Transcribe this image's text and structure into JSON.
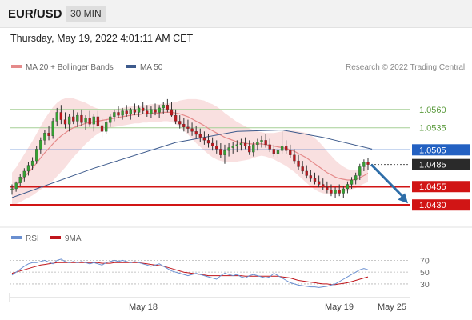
{
  "header": {
    "symbol": "EUR/USD",
    "timeframe": "30 MIN"
  },
  "timestamp": "Thursday, May 19, 2022 4:01:11 AM CET",
  "legend": {
    "ma20_label": "MA 20 + Bollinger Bands",
    "ma50_label": "MA 50",
    "copyright": "Research © 2022 Trading Central"
  },
  "rsi_legend": {
    "rsi_label": "RSI",
    "ma_label": "9MA"
  },
  "colors": {
    "ma20": "#e58a8a",
    "ma50": "#3d5a8c",
    "band_fill": "#f6d0d0",
    "resistance": "#a6cf95",
    "support": "#d11515",
    "pivot": "#2361c2",
    "last_price": "#2a2a2a",
    "candle_up": "#35a032",
    "candle_down": "#c0161c",
    "arrow": "#2d6da8",
    "rsi": "#6a8fd0",
    "rsi_ma": "#c0161c"
  },
  "levels": [
    {
      "label": "1.0560",
      "type": "resistance"
    },
    {
      "label": "1.0535",
      "type": "resistance"
    },
    {
      "label": "1.0505",
      "type": "pivot"
    },
    {
      "label": "1.0485",
      "type": "last"
    },
    {
      "label": "1.0455",
      "type": "support"
    },
    {
      "label": "1.0430",
      "type": "support"
    }
  ],
  "x_labels": [
    "May 18",
    "May 19",
    "May 25"
  ],
  "rsi_levels": [
    "70",
    "50",
    "30"
  ],
  "icons": {
    "forecast_arrow": "arrow-down-right-icon"
  },
  "chart_data": {
    "type": "candlestick",
    "price_range": [
      1.0415,
      1.06
    ],
    "rsi_range": [
      15,
      80
    ],
    "candles": [
      [
        1.045,
        1.0458,
        1.0444,
        1.0452
      ],
      [
        1.0452,
        1.0462,
        1.0448,
        1.046
      ],
      [
        1.046,
        1.0472,
        1.0456,
        1.0468
      ],
      [
        1.0468,
        1.048,
        1.0462,
        1.0476
      ],
      [
        1.0476,
        1.0488,
        1.047,
        1.0484
      ],
      [
        1.0484,
        1.0495,
        1.0478,
        1.049
      ],
      [
        1.049,
        1.051,
        1.0486,
        1.0506
      ],
      [
        1.0506,
        1.0522,
        1.05,
        1.0518
      ],
      [
        1.0518,
        1.0532,
        1.0512,
        1.0528
      ],
      [
        1.0528,
        1.0538,
        1.0518,
        1.0524
      ],
      [
        1.0524,
        1.0548,
        1.052,
        1.0544
      ],
      [
        1.0544,
        1.0562,
        1.0538,
        1.0556
      ],
      [
        1.0556,
        1.0566,
        1.054,
        1.0546
      ],
      [
        1.0546,
        1.0556,
        1.0534,
        1.054
      ],
      [
        1.054,
        1.0554,
        1.053,
        1.055
      ],
      [
        1.055,
        1.056,
        1.054,
        1.0544
      ],
      [
        1.0544,
        1.0556,
        1.0536,
        1.0552
      ],
      [
        1.0552,
        1.056,
        1.0538,
        1.0542
      ],
      [
        1.0542,
        1.0552,
        1.0532,
        1.0548
      ],
      [
        1.0548,
        1.0558,
        1.0536,
        1.054
      ],
      [
        1.054,
        1.0554,
        1.053,
        1.055
      ],
      [
        1.055,
        1.0558,
        1.0536,
        1.0538
      ],
      [
        1.0538,
        1.0548,
        1.0522,
        1.053
      ],
      [
        1.053,
        1.0546,
        1.0526,
        1.0542
      ],
      [
        1.0542,
        1.0554,
        1.0536,
        1.055
      ],
      [
        1.055,
        1.056,
        1.0544,
        1.0556
      ],
      [
        1.0556,
        1.0564,
        1.0548,
        1.0552
      ],
      [
        1.0552,
        1.0562,
        1.0546,
        1.0558
      ],
      [
        1.0558,
        1.0566,
        1.055,
        1.0554
      ],
      [
        1.0554,
        1.0562,
        1.0546,
        1.056
      ],
      [
        1.056,
        1.0568,
        1.0552,
        1.0556
      ],
      [
        1.0556,
        1.0566,
        1.055,
        1.0562
      ],
      [
        1.0562,
        1.057,
        1.0554,
        1.0558
      ],
      [
        1.0558,
        1.0566,
        1.055,
        1.0554
      ],
      [
        1.0554,
        1.0564,
        1.0548,
        1.056
      ],
      [
        1.056,
        1.0568,
        1.0552,
        1.0556
      ],
      [
        1.0556,
        1.0566,
        1.0548,
        1.0562
      ],
      [
        1.0562,
        1.057,
        1.0554,
        1.0566
      ],
      [
        1.0566,
        1.0574,
        1.0556,
        1.056
      ],
      [
        1.056,
        1.057,
        1.055,
        1.0552
      ],
      [
        1.0552,
        1.056,
        1.054,
        1.0544
      ],
      [
        1.0544,
        1.0552,
        1.0534,
        1.054
      ],
      [
        1.054,
        1.0548,
        1.053,
        1.0536
      ],
      [
        1.0536,
        1.0546,
        1.0528,
        1.0534
      ],
      [
        1.0534,
        1.0542,
        1.0524,
        1.053
      ],
      [
        1.053,
        1.0538,
        1.052,
        1.0526
      ],
      [
        1.0526,
        1.0534,
        1.0516,
        1.0522
      ],
      [
        1.0522,
        1.053,
        1.0512,
        1.0518
      ],
      [
        1.0518,
        1.0526,
        1.0508,
        1.0514
      ],
      [
        1.0514,
        1.0522,
        1.0504,
        1.051
      ],
      [
        1.051,
        1.0518,
        1.05,
        1.0506
      ],
      [
        1.0506,
        1.0514,
        1.0494,
        1.0498
      ],
      [
        1.0498,
        1.0512,
        1.0486,
        1.0504
      ],
      [
        1.0504,
        1.0514,
        1.0496,
        1.0508
      ],
      [
        1.0508,
        1.0516,
        1.05,
        1.051
      ],
      [
        1.051,
        1.0518,
        1.0502,
        1.0512
      ],
      [
        1.0512,
        1.052,
        1.0504,
        1.0514
      ],
      [
        1.0514,
        1.0522,
        1.0506,
        1.051
      ],
      [
        1.051,
        1.0518,
        1.0498,
        1.0502
      ],
      [
        1.0502,
        1.0516,
        1.0496,
        1.0512
      ],
      [
        1.0512,
        1.052,
        1.0504,
        1.0516
      ],
      [
        1.0516,
        1.0524,
        1.0508,
        1.0518
      ],
      [
        1.0518,
        1.0526,
        1.0508,
        1.0512
      ],
      [
        1.0512,
        1.052,
        1.0502,
        1.0506
      ],
      [
        1.0506,
        1.0512,
        1.0496,
        1.05
      ],
      [
        1.05,
        1.0508,
        1.0494,
        1.0504
      ],
      [
        1.0504,
        1.053,
        1.05,
        1.051
      ],
      [
        1.051,
        1.0518,
        1.05,
        1.0504
      ],
      [
        1.0504,
        1.0512,
        1.0494,
        1.0498
      ],
      [
        1.0498,
        1.0506,
        1.0486,
        1.049
      ],
      [
        1.049,
        1.0498,
        1.0478,
        1.0482
      ],
      [
        1.0482,
        1.049,
        1.0472,
        1.0476
      ],
      [
        1.0476,
        1.0484,
        1.0466,
        1.047
      ],
      [
        1.047,
        1.0478,
        1.0462,
        1.0466
      ],
      [
        1.0466,
        1.0474,
        1.0458,
        1.0462
      ],
      [
        1.0462,
        1.047,
        1.0454,
        1.0458
      ],
      [
        1.0458,
        1.0466,
        1.045,
        1.0454
      ],
      [
        1.0454,
        1.0462,
        1.0446,
        1.045
      ],
      [
        1.045,
        1.0458,
        1.0442,
        1.0446
      ],
      [
        1.0446,
        1.0454,
        1.044,
        1.045
      ],
      [
        1.045,
        1.0458,
        1.0442,
        1.0446
      ],
      [
        1.0446,
        1.0456,
        1.044,
        1.0452
      ],
      [
        1.0452,
        1.0462,
        1.0446,
        1.0458
      ],
      [
        1.0458,
        1.0468,
        1.0452,
        1.0464
      ],
      [
        1.0464,
        1.0474,
        1.0458,
        1.047
      ],
      [
        1.047,
        1.0486,
        1.0464,
        1.0482
      ],
      [
        1.0482,
        1.0492,
        1.0476,
        1.0488
      ],
      [
        1.0488,
        1.0494,
        1.0478,
        1.0485
      ]
    ],
    "ma20": [
      1.0452,
      1.0456,
      1.0462,
      1.0468,
      1.0474,
      1.048,
      1.0487,
      1.0494,
      1.0501,
      1.0507,
      1.0513,
      1.0519,
      1.0524,
      1.0528,
      1.0532,
      1.0535,
      1.0537,
      1.0539,
      1.0541,
      1.0542,
      1.0543,
      1.0544,
      1.0545,
      1.0546,
      1.0547,
      1.0548,
      1.0549,
      1.055,
      1.0551,
      1.0552,
      1.0553,
      1.0553,
      1.0554,
      1.0554,
      1.0555,
      1.0555,
      1.0555,
      1.0556,
      1.0556,
      1.0556,
      1.0555,
      1.0554,
      1.0552,
      1.055,
      1.0547,
      1.0544,
      1.0541,
      1.0538,
      1.0534,
      1.0531,
      1.0528,
      1.0525,
      1.0522,
      1.052,
      1.0518,
      1.0516,
      1.0515,
      1.0514,
      1.0513,
      1.0513,
      1.0513,
      1.0513,
      1.0512,
      1.0511,
      1.051,
      1.0509,
      1.0508,
      1.0507,
      1.0505,
      1.0503,
      1.05,
      1.0497,
      1.0494,
      1.049,
      1.0486,
      1.0482,
      1.0478,
      1.0474,
      1.0471,
      1.0468,
      1.0466,
      1.0465,
      1.0464,
      1.0464,
      1.0465,
      1.0467,
      1.047,
      1.0473
    ],
    "band_width": [
      0.0022,
      0.0025,
      0.0028,
      0.0031,
      0.0034,
      0.0037,
      0.004,
      0.0043,
      0.0046,
      0.0048,
      0.005,
      0.005,
      0.0049,
      0.0047,
      0.0044,
      0.004,
      0.0036,
      0.0032,
      0.0028,
      0.0024,
      0.002,
      0.0017,
      0.0015,
      0.0013,
      0.0012,
      0.0012,
      0.0012,
      0.0012,
      0.0012,
      0.0012,
      0.0012,
      0.0012,
      0.0012,
      0.0012,
      0.0012,
      0.0012,
      0.0012,
      0.0012,
      0.0012,
      0.0013,
      0.0015,
      0.0018,
      0.0021,
      0.0024,
      0.0027,
      0.003,
      0.0032,
      0.0034,
      0.0035,
      0.0036,
      0.0036,
      0.0035,
      0.0033,
      0.0031,
      0.0029,
      0.0027,
      0.0025,
      0.0023,
      0.0021,
      0.0019,
      0.0017,
      0.0016,
      0.0016,
      0.0017,
      0.0018,
      0.002,
      0.0022,
      0.0024,
      0.0026,
      0.0028,
      0.003,
      0.0032,
      0.0034,
      0.0035,
      0.0035,
      0.0034,
      0.0032,
      0.0029,
      0.0026,
      0.0023,
      0.002,
      0.0017,
      0.0015,
      0.0013,
      0.0012,
      0.0011,
      0.0011,
      0.0012
    ],
    "ma50_points": [
      [
        0,
        1.044
      ],
      [
        20,
        1.048
      ],
      [
        40,
        1.0515
      ],
      [
        55,
        1.053
      ],
      [
        66,
        1.0532
      ],
      [
        76,
        1.0522
      ],
      [
        88,
        1.0506
      ]
    ],
    "rsi": [
      45,
      50,
      55,
      60,
      64,
      66,
      66,
      68,
      70,
      67,
      64,
      70,
      72,
      68,
      66,
      68,
      66,
      68,
      66,
      64,
      66,
      64,
      62,
      66,
      68,
      70,
      68,
      70,
      68,
      66,
      68,
      66,
      64,
      62,
      60,
      62,
      64,
      60,
      56,
      52,
      50,
      48,
      46,
      44,
      46,
      48,
      46,
      44,
      42,
      40,
      38,
      44,
      48,
      46,
      44,
      46,
      42,
      40,
      44,
      46,
      44,
      42,
      40,
      42,
      48,
      44,
      40,
      36,
      32,
      30,
      28,
      27,
      26,
      25,
      25,
      24,
      25,
      26,
      28,
      30,
      34,
      38,
      42,
      46,
      50,
      54,
      56,
      54
    ],
    "rsi_ma": [
      48,
      50,
      52,
      54,
      56,
      58,
      60,
      62,
      63,
      64,
      65,
      66,
      66,
      66,
      66,
      66,
      66,
      66,
      66,
      66,
      66,
      66,
      65,
      65,
      65,
      66,
      66,
      66,
      66,
      66,
      66,
      66,
      65,
      64,
      63,
      62,
      61,
      60,
      58,
      56,
      54,
      52,
      50,
      49,
      48,
      47,
      46,
      45,
      44,
      44,
      44,
      44,
      44,
      44,
      44,
      44,
      44,
      43,
      43,
      43,
      43,
      43,
      43,
      43,
      43,
      43,
      42,
      41,
      40,
      38,
      36,
      35,
      34,
      33,
      32,
      31,
      30,
      30,
      29,
      29,
      30,
      31,
      32,
      34,
      36,
      38,
      40,
      42
    ]
  }
}
